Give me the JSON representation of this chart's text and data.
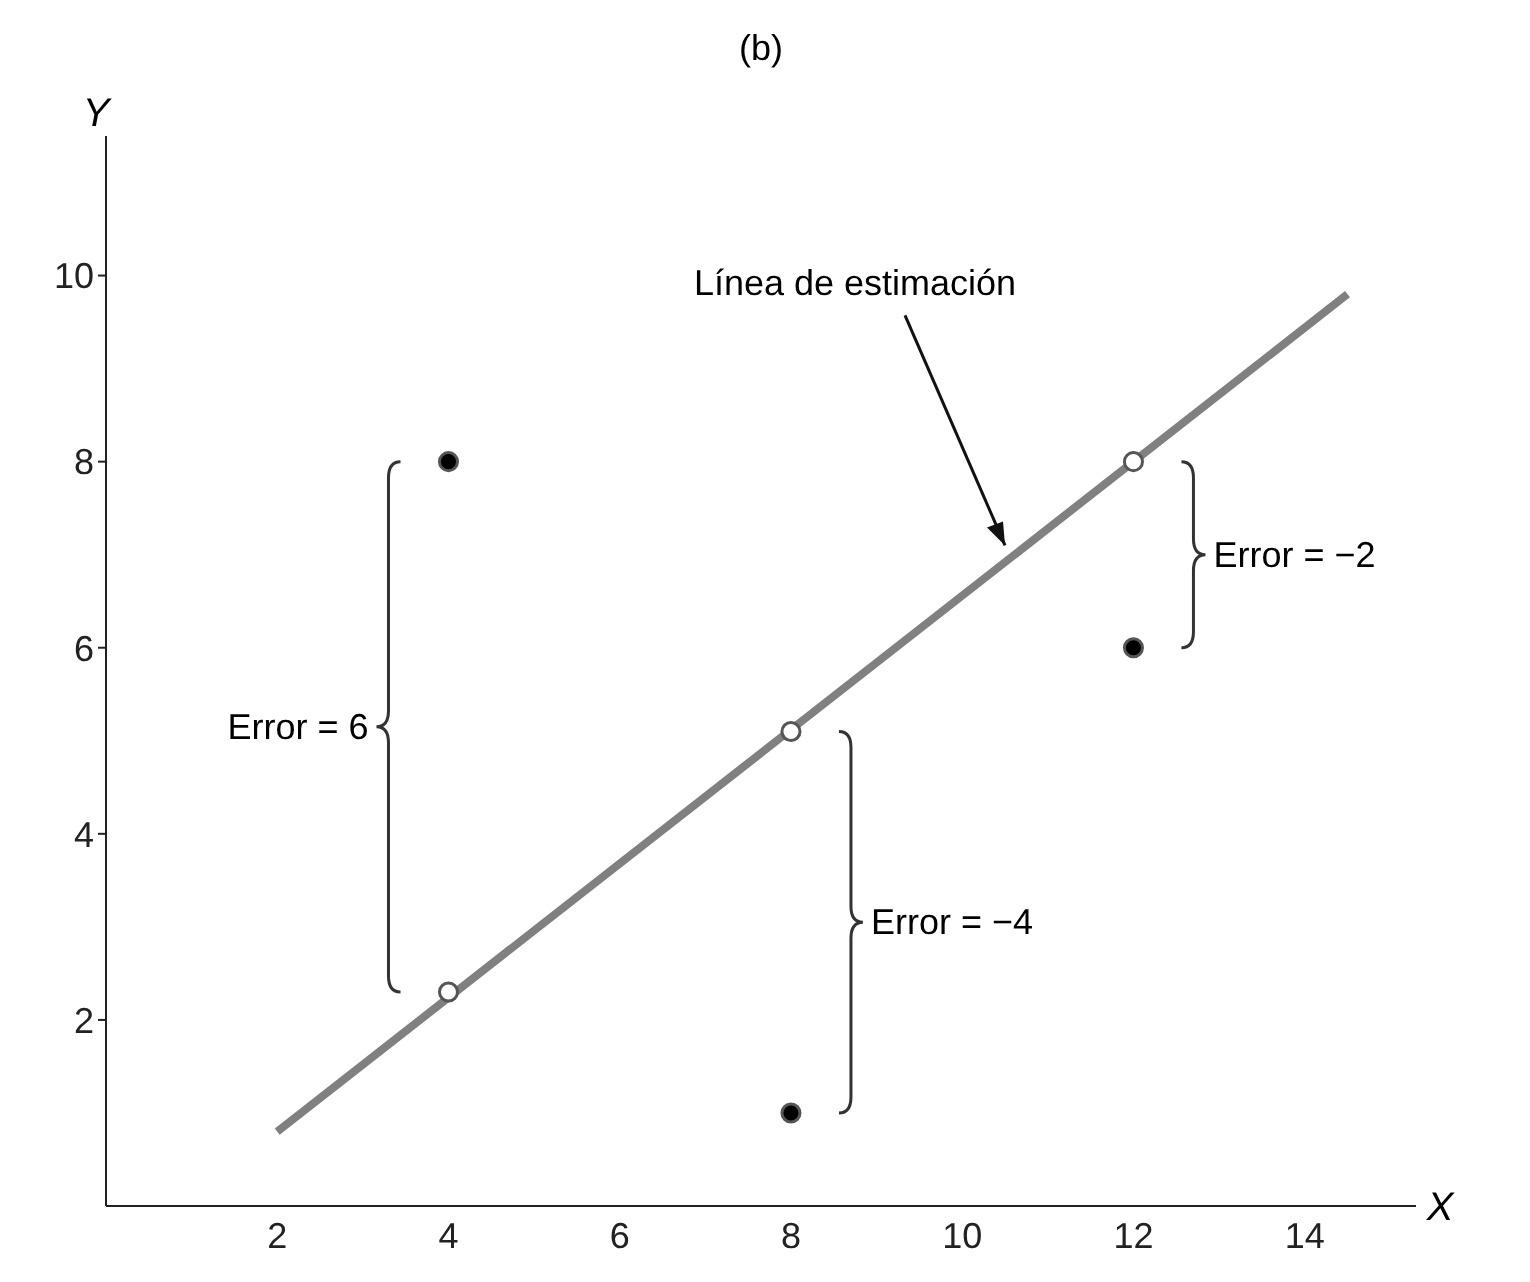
{
  "chart_data": {
    "type": "scatter",
    "title": "(b)",
    "xlabel": "X",
    "ylabel": "Y",
    "xlim": [
      0,
      15.3
    ],
    "ylim": [
      0,
      11.5
    ],
    "xticks": [
      2,
      4,
      6,
      8,
      10,
      12,
      14
    ],
    "yticks": [
      2,
      4,
      6,
      8,
      10
    ],
    "grid": false,
    "series": [
      {
        "type": "line",
        "color": "#808080",
        "x": [
          2,
          14.5
        ],
        "values": [
          0.8,
          9.8
        ],
        "marker": "none"
      },
      {
        "color": "#000000",
        "x": [
          4,
          8,
          12
        ],
        "values": [
          8,
          1,
          6
        ],
        "marker": "circle"
      },
      {
        "color": "#ffffff",
        "x": [
          4,
          8,
          12
        ],
        "values": [
          2.3,
          5.1,
          8.0
        ],
        "marker": "circle"
      }
    ],
    "annotations": [
      {
        "text": "Línea de estimación",
        "x": 10.5,
        "y": 7.1
      },
      "Error = 6",
      "Error = −4",
      "Error = −2"
    ]
  }
}
